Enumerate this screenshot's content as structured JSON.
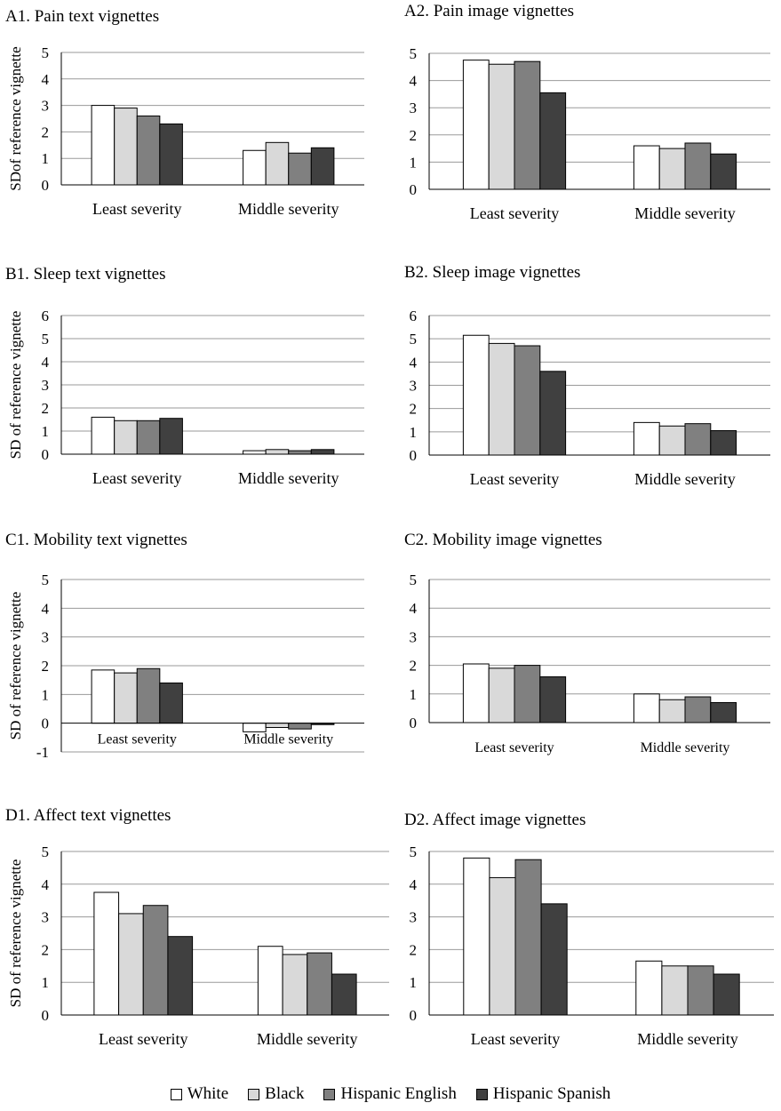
{
  "legend": [
    {
      "name": "White",
      "color": "#ffffff"
    },
    {
      "name": "Black",
      "color": "#d9d9d9"
    },
    {
      "name": "Hispanic English",
      "color": "#808080"
    },
    {
      "name": "Hispanic Spanish",
      "color": "#404040"
    }
  ],
  "chart_data": [
    {
      "type": "bar",
      "title": "A1. Pain text vignettes",
      "ylabel": "SDof reference vignette",
      "categories": [
        "Least severity",
        "Middle severity"
      ],
      "ylim": [
        0,
        5
      ],
      "yticks": [
        0,
        1,
        2,
        3,
        4,
        5
      ],
      "grid": true,
      "series": [
        {
          "name": "White",
          "values": [
            3.0,
            1.3
          ]
        },
        {
          "name": "Black",
          "values": [
            2.9,
            1.6
          ]
        },
        {
          "name": "Hispanic English",
          "values": [
            2.6,
            1.2
          ]
        },
        {
          "name": "Hispanic Spanish",
          "values": [
            2.3,
            1.4
          ]
        }
      ]
    },
    {
      "type": "bar",
      "title": "A2. Pain image vignettes",
      "ylabel": "",
      "categories": [
        "Least severity",
        "Middle severity"
      ],
      "ylim": [
        0,
        5
      ],
      "yticks": [
        0,
        1,
        2,
        3,
        4,
        5
      ],
      "grid": true,
      "series": [
        {
          "name": "White",
          "values": [
            4.75,
            1.6
          ]
        },
        {
          "name": "Black",
          "values": [
            4.6,
            1.5
          ]
        },
        {
          "name": "Hispanic English",
          "values": [
            4.7,
            1.7
          ]
        },
        {
          "name": "Hispanic Spanish",
          "values": [
            3.55,
            1.3
          ]
        }
      ]
    },
    {
      "type": "bar",
      "title": "B1. Sleep text vignettes",
      "ylabel": "SD of reference vignette",
      "categories": [
        "Least severity",
        "Middle severity"
      ],
      "ylim": [
        0,
        6
      ],
      "yticks": [
        0,
        1,
        2,
        3,
        4,
        5,
        6
      ],
      "grid": true,
      "series": [
        {
          "name": "White",
          "values": [
            1.6,
            0.15
          ]
        },
        {
          "name": "Black",
          "values": [
            1.45,
            0.2
          ]
        },
        {
          "name": "Hispanic English",
          "values": [
            1.45,
            0.15
          ]
        },
        {
          "name": "Hispanic Spanish",
          "values": [
            1.55,
            0.2
          ]
        }
      ]
    },
    {
      "type": "bar",
      "title": "B2. Sleep image vignettes",
      "ylabel": "",
      "categories": [
        "Least severity",
        "Middle severity"
      ],
      "ylim": [
        0,
        6
      ],
      "yticks": [
        0,
        1,
        2,
        3,
        4,
        5,
        6
      ],
      "grid": true,
      "series": [
        {
          "name": "White",
          "values": [
            5.15,
            1.4
          ]
        },
        {
          "name": "Black",
          "values": [
            4.8,
            1.25
          ]
        },
        {
          "name": "Hispanic English",
          "values": [
            4.7,
            1.35
          ]
        },
        {
          "name": "Hispanic Spanish",
          "values": [
            3.6,
            1.05
          ]
        }
      ]
    },
    {
      "type": "bar",
      "title": "C1. Mobility text vignettes",
      "ylabel": "SD of reference vignette",
      "categories": [
        "Least severity",
        "Middle severity"
      ],
      "ylim": [
        -1,
        5
      ],
      "yticks": [
        -1,
        0,
        1,
        2,
        3,
        4,
        5
      ],
      "grid": true,
      "series": [
        {
          "name": "White",
          "values": [
            1.85,
            -0.3
          ]
        },
        {
          "name": "Black",
          "values": [
            1.75,
            -0.15
          ]
        },
        {
          "name": "Hispanic English",
          "values": [
            1.9,
            -0.2
          ]
        },
        {
          "name": "Hispanic Spanish",
          "values": [
            1.4,
            -0.05
          ]
        }
      ]
    },
    {
      "type": "bar",
      "title": "C2. Mobility image vignettes",
      "ylabel": "",
      "categories": [
        "Least severity",
        "Middle severity"
      ],
      "ylim": [
        0,
        5
      ],
      "yticks": [
        0,
        1,
        2,
        3,
        4,
        5
      ],
      "grid": true,
      "series": [
        {
          "name": "White",
          "values": [
            2.05,
            1.0
          ]
        },
        {
          "name": "Black",
          "values": [
            1.9,
            0.8
          ]
        },
        {
          "name": "Hispanic English",
          "values": [
            2.0,
            0.9
          ]
        },
        {
          "name": "Hispanic Spanish",
          "values": [
            1.6,
            0.7
          ]
        }
      ]
    },
    {
      "type": "bar",
      "title": "D1. Affect text vignettes",
      "ylabel": "SD of reference vignette",
      "categories": [
        "Least severity",
        "Middle severity"
      ],
      "ylim": [
        0,
        5
      ],
      "yticks": [
        0,
        1,
        2,
        3,
        4,
        5
      ],
      "grid": true,
      "series": [
        {
          "name": "White",
          "values": [
            3.75,
            2.1
          ]
        },
        {
          "name": "Black",
          "values": [
            3.1,
            1.85
          ]
        },
        {
          "name": "Hispanic English",
          "values": [
            3.35,
            1.9
          ]
        },
        {
          "name": "Hispanic Spanish",
          "values": [
            2.4,
            1.25
          ]
        }
      ]
    },
    {
      "type": "bar",
      "title": "D2. Affect image vignettes",
      "ylabel": "",
      "categories": [
        "Least severity",
        "Middle severity"
      ],
      "ylim": [
        0,
        5
      ],
      "yticks": [
        0,
        1,
        2,
        3,
        4,
        5
      ],
      "grid": true,
      "series": [
        {
          "name": "White",
          "values": [
            4.8,
            1.65
          ]
        },
        {
          "name": "Black",
          "values": [
            4.2,
            1.5
          ]
        },
        {
          "name": "Hispanic English",
          "values": [
            4.75,
            1.5
          ]
        },
        {
          "name": "Hispanic Spanish",
          "values": [
            3.4,
            1.25
          ]
        }
      ]
    }
  ]
}
